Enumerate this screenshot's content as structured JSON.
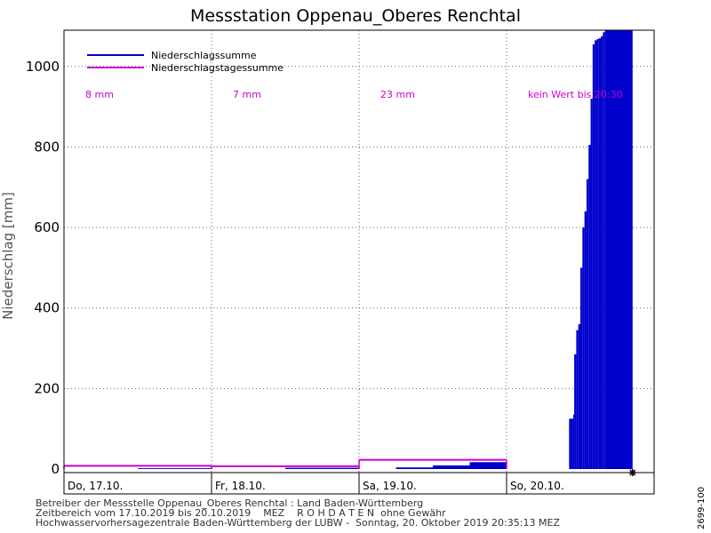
{
  "chart_data": {
    "type": "area",
    "title": "Messstation Oppenau_Oberes Renchtal",
    "ylabel": "Niederschlag [mm]",
    "ylim": [
      0,
      1090
    ],
    "xlim": [
      "2019-10-17T00:00",
      "2019-10-21T00:00"
    ],
    "yticks": [
      0,
      200,
      400,
      600,
      800,
      1000
    ],
    "grid": true,
    "legend_position": "top-left",
    "day_ticks": [
      "Do, 17.10.",
      "Fr, 18.10.",
      "Sa, 19.10.",
      "So, 20.10."
    ],
    "series": [
      {
        "name": "Niederschlagssumme",
        "color": "#0000cc",
        "style": "filled-area",
        "points": [
          [
            "2019-10-17T00:00",
            0
          ],
          [
            "2019-10-17T12:00",
            2
          ],
          [
            "2019-10-17T23:59",
            5
          ],
          [
            "2019-10-18T00:00",
            0
          ],
          [
            "2019-10-18T12:00",
            3
          ],
          [
            "2019-10-18T23:59",
            6
          ],
          [
            "2019-10-19T00:00",
            0
          ],
          [
            "2019-10-19T06:00",
            4
          ],
          [
            "2019-10-19T12:00",
            9
          ],
          [
            "2019-10-19T18:00",
            17
          ],
          [
            "2019-10-19T23:59",
            21
          ],
          [
            "2019-10-20T00:00",
            0
          ],
          [
            "2019-10-20T10:00",
            0
          ],
          [
            "2019-10-20T10:10",
            125
          ],
          [
            "2019-10-20T10:50",
            135
          ],
          [
            "2019-10-20T11:00",
            285
          ],
          [
            "2019-10-20T11:20",
            345
          ],
          [
            "2019-10-20T11:40",
            360
          ],
          [
            "2019-10-20T12:00",
            500
          ],
          [
            "2019-10-20T12:20",
            600
          ],
          [
            "2019-10-20T12:40",
            640
          ],
          [
            "2019-10-20T13:00",
            720
          ],
          [
            "2019-10-20T13:20",
            805
          ],
          [
            "2019-10-20T13:40",
            920
          ],
          [
            "2019-10-20T14:00",
            1055
          ],
          [
            "2019-10-20T14:20",
            1065
          ],
          [
            "2019-10-20T14:40",
            1068
          ],
          [
            "2019-10-20T15:00",
            1070
          ],
          [
            "2019-10-20T15:20",
            1075
          ],
          [
            "2019-10-20T15:40",
            1085
          ],
          [
            "2019-10-20T16:00",
            1090
          ],
          [
            "2019-10-20T20:30",
            1090
          ]
        ]
      },
      {
        "name": "Niederschlagstagessumme",
        "color": "#cc00cc",
        "style": "step-line",
        "days": [
          "Do, 17.10.",
          "Fr, 18.10.",
          "Sa, 19.10."
        ],
        "values": [
          8,
          7,
          23
        ]
      }
    ],
    "annotations": [
      {
        "day": "Do, 17.10.",
        "text": "8 mm"
      },
      {
        "day": "Fr, 18.10.",
        "text": "7 mm"
      },
      {
        "day": "Sa, 19.10.",
        "text": "23 mm"
      },
      {
        "day": "So, 20.10.",
        "text": "kein Wert bis 20:30"
      }
    ],
    "current_marker": {
      "time": "2019-10-20T20:30",
      "value": 0,
      "symbol": "star"
    }
  },
  "footer": {
    "line1": "Betreiber der Messstelle Oppenau_Oberes Renchtal : Land Baden-Württemberg",
    "line2": "Zeitbereich vom 17.10.2019 bis 20.10.2019    MEZ    R O H D A T E N  ohne Gewähr",
    "line3": "Hochwasservorhersagezentrale Baden-Württemberg der LUBW -  Sonntag, 20. Oktober 2019 20:35:13 MEZ"
  },
  "side_id": "2699-100"
}
